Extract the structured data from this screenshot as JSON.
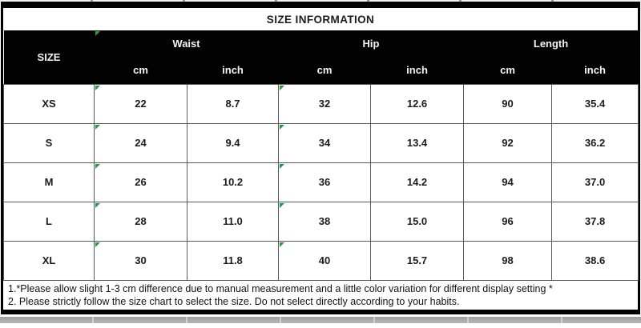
{
  "title": "SIZE INFORMATION",
  "table": {
    "size_col_header": "SIZE",
    "groups": [
      {
        "label": "Waist"
      },
      {
        "label": "Hip"
      },
      {
        "label": "Length"
      }
    ],
    "unit_headers": [
      "cm",
      "inch",
      "cm",
      "inch",
      "cm",
      "inch"
    ],
    "rows": [
      {
        "size": "XS",
        "values": [
          "22",
          "8.7",
          "32",
          "12.6",
          "90",
          "35.4"
        ]
      },
      {
        "size": "S",
        "values": [
          "24",
          "9.4",
          "34",
          "13.4",
          "92",
          "36.2"
        ]
      },
      {
        "size": "M",
        "values": [
          "26",
          "10.2",
          "36",
          "14.2",
          "94",
          "37.0"
        ]
      },
      {
        "size": "L",
        "values": [
          "28",
          "11.0",
          "38",
          "15.0",
          "96",
          "37.8"
        ]
      },
      {
        "size": "XL",
        "values": [
          "30",
          "11.8",
          "40",
          "15.7",
          "98",
          "38.6"
        ]
      }
    ],
    "green_flag_value_columns": [
      0,
      2
    ]
  },
  "notes": [
    "1.*Please allow slight 1-3 cm difference due to manual measurement and a little color variation for different display setting *",
    "2. Please strictly follow the size chart to select the size. Do not select directly according to your habits."
  ],
  "colors": {
    "header_bg": "#020202",
    "header_text": "#f5f5f5",
    "grid_line": "#595959",
    "green_flag": "#1f9d44",
    "bottom_strip": "#a9a9a9"
  }
}
